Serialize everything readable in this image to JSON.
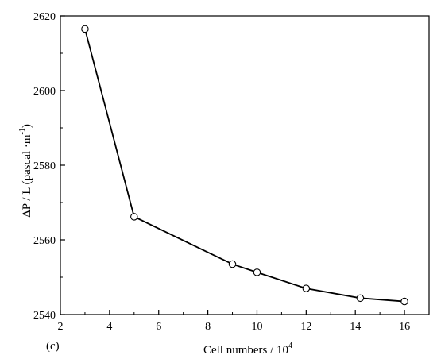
{
  "chart_data": {
    "type": "line",
    "panel_label": "(c)",
    "xlabel": "Cell numbers / 10",
    "xlabel_superscript": "4",
    "ylabel_main": "ΔP / L (pascal ·m",
    "ylabel_superscript": "-1",
    "ylabel_close": ")",
    "xlim": [
      2,
      17
    ],
    "ylim": [
      2540,
      2620
    ],
    "xticks": [
      2,
      4,
      6,
      8,
      10,
      12,
      14,
      16
    ],
    "yticks": [
      2540,
      2560,
      2580,
      2600,
      2620
    ],
    "grid": false,
    "series": [
      {
        "x": [
          3,
          5,
          9,
          10,
          12,
          14.2,
          16
        ],
        "values": [
          2616.5,
          2566.2,
          2553.5,
          2551.3,
          2547.0,
          2544.4,
          2543.5
        ],
        "color": "#000000",
        "marker": "open-circle"
      }
    ]
  }
}
